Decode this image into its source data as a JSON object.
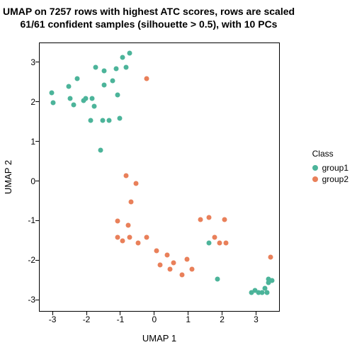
{
  "chart": {
    "type": "scatter",
    "title_line1": "UMAP on 7257 rows with highest ATC scores, rows are scaled",
    "title_line2": "61/61 confident samples (silhouette > 0.5), with 10 PCs",
    "xlabel": "UMAP 1",
    "ylabel": "UMAP 2",
    "title_fontsize": 14,
    "label_fontsize": 13,
    "tick_fontsize": 12,
    "xlim": [
      -3.4,
      3.7
    ],
    "ylim": [
      -3.3,
      3.5
    ],
    "xticks": [
      -3,
      -2,
      -1,
      0,
      1,
      2,
      3
    ],
    "yticks": [
      -3,
      -2,
      -1,
      0,
      1,
      2,
      3
    ],
    "background_color": "#ffffff",
    "border_color": "#000000",
    "point_radius": 3.5,
    "colors": {
      "group1": "#4cb49a",
      "group2": "#e9805a"
    },
    "legend": {
      "title": "Class",
      "items": [
        {
          "label": "group1",
          "color": "#4cb49a"
        },
        {
          "label": "group2",
          "color": "#e9805a"
        }
      ]
    },
    "series": [
      {
        "name": "group1",
        "color": "#4cb49a",
        "points": [
          [
            -3.05,
            2.25
          ],
          [
            -3.0,
            2.0
          ],
          [
            -2.55,
            2.4
          ],
          [
            -2.5,
            2.1
          ],
          [
            -2.4,
            1.95
          ],
          [
            -2.3,
            2.6
          ],
          [
            -2.1,
            2.05
          ],
          [
            -2.05,
            2.1
          ],
          [
            -1.9,
            1.55
          ],
          [
            -1.85,
            2.1
          ],
          [
            -1.8,
            1.9
          ],
          [
            -1.75,
            2.9
          ],
          [
            -1.6,
            0.8
          ],
          [
            -1.55,
            1.55
          ],
          [
            -1.5,
            2.45
          ],
          [
            -1.5,
            2.8
          ],
          [
            -1.35,
            1.55
          ],
          [
            -1.25,
            2.55
          ],
          [
            -1.15,
            2.85
          ],
          [
            -1.1,
            2.2
          ],
          [
            -1.05,
            1.6
          ],
          [
            -0.95,
            3.15
          ],
          [
            -0.85,
            2.9
          ],
          [
            -0.75,
            3.25
          ],
          [
            1.6,
            -1.55
          ],
          [
            1.85,
            -2.45
          ],
          [
            2.85,
            -2.8
          ],
          [
            2.95,
            -2.75
          ],
          [
            3.05,
            -2.8
          ],
          [
            3.15,
            -2.8
          ],
          [
            3.25,
            -2.7
          ],
          [
            3.3,
            -2.8
          ],
          [
            3.35,
            -2.45
          ],
          [
            3.35,
            -2.55
          ],
          [
            3.45,
            -2.5
          ]
        ]
      },
      {
        "name": "group2",
        "color": "#e9805a",
        "points": [
          [
            -0.25,
            2.6
          ],
          [
            -0.85,
            0.15
          ],
          [
            -0.55,
            -0.05
          ],
          [
            -0.7,
            -0.5
          ],
          [
            -1.1,
            -1.0
          ],
          [
            -0.8,
            -1.1
          ],
          [
            -1.1,
            -1.4
          ],
          [
            -0.95,
            -1.5
          ],
          [
            -0.75,
            -1.4
          ],
          [
            -0.5,
            -1.55
          ],
          [
            -0.25,
            -1.4
          ],
          [
            0.05,
            -1.75
          ],
          [
            0.15,
            -2.1
          ],
          [
            0.35,
            -1.85
          ],
          [
            0.45,
            -2.2
          ],
          [
            0.55,
            -2.05
          ],
          [
            0.8,
            -2.35
          ],
          [
            0.95,
            -1.95
          ],
          [
            1.1,
            -2.2
          ],
          [
            1.35,
            -0.95
          ],
          [
            1.6,
            -0.9
          ],
          [
            1.75,
            -1.4
          ],
          [
            1.9,
            -1.55
          ],
          [
            2.05,
            -0.95
          ],
          [
            2.1,
            -1.55
          ],
          [
            3.4,
            -1.9
          ]
        ]
      }
    ]
  }
}
